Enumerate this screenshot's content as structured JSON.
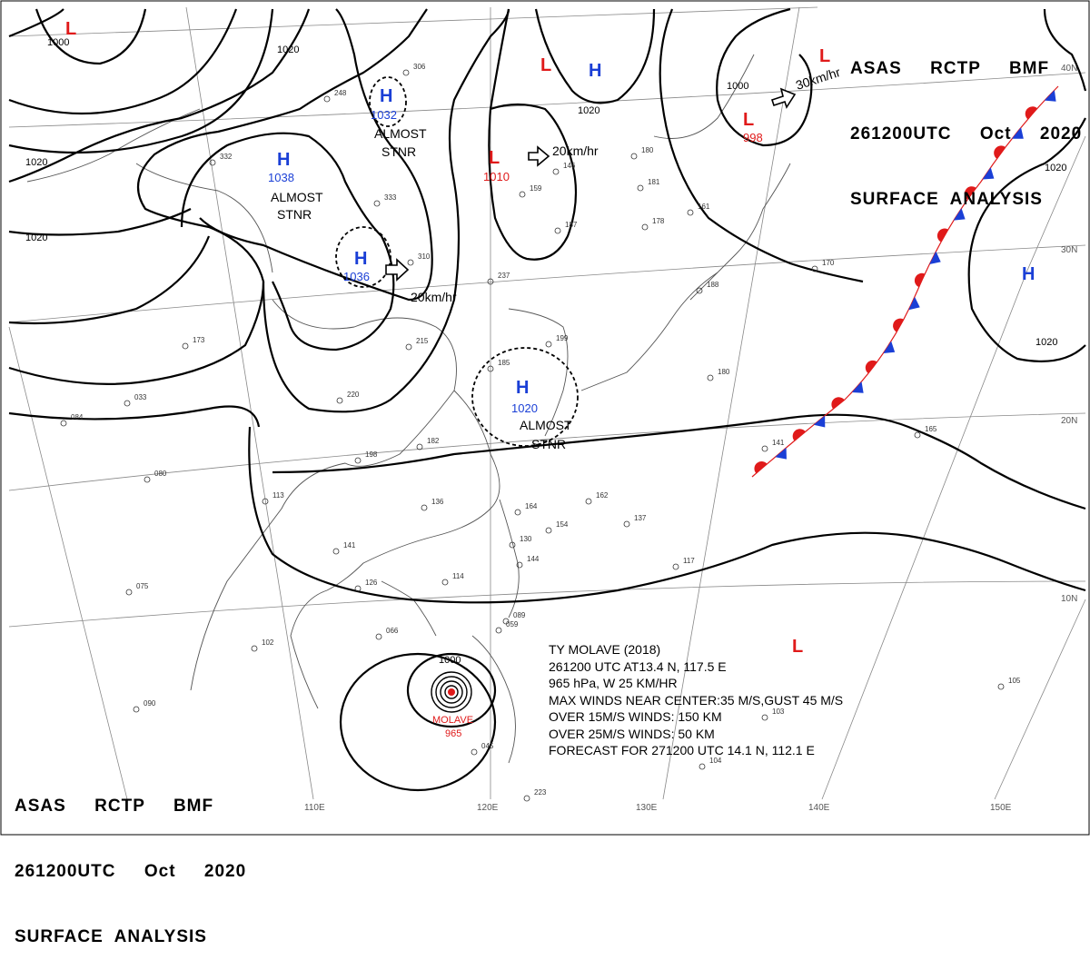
{
  "header": {
    "line1": "ASAS     RCTP     BMF",
    "line2": "261200UTC     Oct     2020",
    "line3": "SURFACE  ANALYSIS"
  },
  "colors": {
    "high": "#1a3fd6",
    "low": "#e01a1a",
    "front_red": "#e01a1a",
    "front_blue": "#1a3fd6",
    "isobar": "#000000",
    "coast": "#555555"
  },
  "grid": {
    "lon_labels": [
      "110E",
      "120E",
      "130E",
      "140E",
      "150E"
    ],
    "lat_labels": [
      "10N",
      "20N",
      "30N",
      "40N"
    ]
  },
  "isobar_labels": [
    "1000",
    "1020",
    "1020",
    "1020",
    "1020",
    "1000",
    "1020",
    "1020",
    "1000"
  ],
  "centers": [
    {
      "kind": "H",
      "value": "1038",
      "note": "ALMOST STNR"
    },
    {
      "kind": "H",
      "value": "1032",
      "note": "ALMOST STNR"
    },
    {
      "kind": "H",
      "value": "1036",
      "note": "20km/hr"
    },
    {
      "kind": "L",
      "value": "1010",
      "note": "20km/hr"
    },
    {
      "kind": "H",
      "value": "1020",
      "note": "ALMOST STNR"
    },
    {
      "kind": "L",
      "value": "998",
      "note": "30km/hr"
    },
    {
      "kind": "L",
      "value": ""
    },
    {
      "kind": "H",
      "value": ""
    },
    {
      "kind": "L",
      "value": ""
    },
    {
      "kind": "H",
      "value": ""
    },
    {
      "kind": "L",
      "value": ""
    }
  ],
  "labels": {
    "almost": "ALMOST",
    "stnr": "STNR",
    "speed20": "20km/hr",
    "speed30": "30km/hr",
    "molave": "MOLAVE",
    "molave_p": "965"
  },
  "typhoon": {
    "line1": "TY  MOLAVE  (2018)",
    "line2": "261200 UTC  AT13.4 N, 117.5 E",
    "line3": "965 hPa, W  25 KM/HR",
    "line4": "MAX WINDS NEAR CENTER:35 M/S,GUST 45 M/S",
    "line5": "OVER 15M/S WINDS: 150 KM",
    "line6": "OVER 25M/S WINDS: 50 KM",
    "line7": "FORECAST FOR 271200 UTC 14.1 N, 112.1 E"
  },
  "stations": [
    "306",
    "248",
    "332",
    "333",
    "310",
    "215",
    "220",
    "173",
    "084",
    "033",
    "075",
    "080",
    "182",
    "198",
    "113",
    "136",
    "141",
    "126",
    "114",
    "130",
    "144",
    "164",
    "154",
    "162",
    "137",
    "117",
    "089",
    "059",
    "045",
    "102",
    "090",
    "066",
    "185",
    "199",
    "170",
    "188",
    "180",
    "178",
    "181",
    "180",
    "146",
    "187",
    "159",
    "161",
    "165",
    "141",
    "103",
    "104",
    "105",
    "237",
    "223"
  ]
}
